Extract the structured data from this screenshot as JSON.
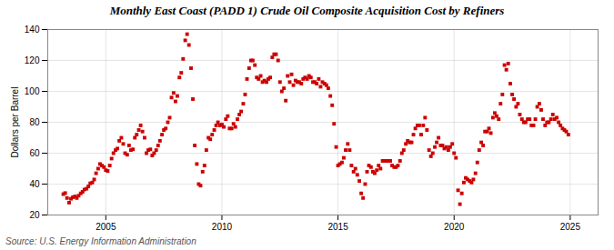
{
  "chart_data": {
    "type": "scatter",
    "title": "Monthly East Coast (PADD 1) Crude Oil Composite Acquisition Cost by Refiners",
    "ylabel": "Dollars per Barrel",
    "caption": "Source: U.S. Energy Information Administration",
    "color": "#cc0000",
    "marker": "square",
    "grid": true,
    "xlim": [
      2002.5,
      2026.2
    ],
    "xticks": [
      2005,
      2010,
      2015,
      2020,
      2025
    ],
    "ylim": [
      20,
      140
    ],
    "yticks": [
      20,
      40,
      60,
      80,
      100,
      120,
      140
    ],
    "x": [
      2003.17,
      2003.25,
      2003.33,
      2003.42,
      2003.5,
      2003.58,
      2003.67,
      2003.75,
      2003.83,
      2003.92,
      2004.0,
      2004.08,
      2004.17,
      2004.25,
      2004.33,
      2004.42,
      2004.5,
      2004.58,
      2004.67,
      2004.75,
      2004.83,
      2004.92,
      2005.0,
      2005.08,
      2005.17,
      2005.25,
      2005.33,
      2005.42,
      2005.5,
      2005.58,
      2005.67,
      2005.75,
      2005.83,
      2005.92,
      2006.0,
      2006.08,
      2006.17,
      2006.25,
      2006.33,
      2006.42,
      2006.5,
      2006.58,
      2006.67,
      2006.75,
      2006.83,
      2006.92,
      2007.0,
      2007.08,
      2007.17,
      2007.25,
      2007.33,
      2007.42,
      2007.5,
      2007.58,
      2007.67,
      2007.75,
      2007.83,
      2007.92,
      2008.0,
      2008.08,
      2008.17,
      2008.25,
      2008.33,
      2008.42,
      2008.5,
      2008.58,
      2008.67,
      2008.75,
      2008.83,
      2008.92,
      2009.0,
      2009.08,
      2009.17,
      2009.25,
      2009.33,
      2009.42,
      2009.5,
      2009.58,
      2009.67,
      2009.75,
      2009.83,
      2009.92,
      2010.0,
      2010.08,
      2010.17,
      2010.25,
      2010.33,
      2010.42,
      2010.5,
      2010.58,
      2010.67,
      2010.75,
      2010.83,
      2010.92,
      2011.0,
      2011.08,
      2011.17,
      2011.25,
      2011.33,
      2011.42,
      2011.5,
      2011.58,
      2011.67,
      2011.75,
      2011.83,
      2011.92,
      2012.0,
      2012.08,
      2012.17,
      2012.25,
      2012.33,
      2012.42,
      2012.5,
      2012.58,
      2012.67,
      2012.75,
      2012.83,
      2012.92,
      2013.0,
      2013.08,
      2013.17,
      2013.25,
      2013.33,
      2013.42,
      2013.5,
      2013.58,
      2013.67,
      2013.75,
      2013.83,
      2013.92,
      2014.0,
      2014.08,
      2014.17,
      2014.25,
      2014.33,
      2014.42,
      2014.5,
      2014.58,
      2014.67,
      2014.75,
      2014.83,
      2014.92,
      2015.0,
      2015.08,
      2015.17,
      2015.25,
      2015.33,
      2015.42,
      2015.5,
      2015.58,
      2015.67,
      2015.75,
      2015.83,
      2015.92,
      2016.0,
      2016.08,
      2016.17,
      2016.25,
      2016.33,
      2016.42,
      2016.5,
      2016.58,
      2016.67,
      2016.75,
      2016.83,
      2016.92,
      2017.0,
      2017.08,
      2017.17,
      2017.25,
      2017.33,
      2017.42,
      2017.5,
      2017.58,
      2017.67,
      2017.75,
      2017.83,
      2017.92,
      2018.0,
      2018.08,
      2018.17,
      2018.25,
      2018.33,
      2018.42,
      2018.5,
      2018.58,
      2018.67,
      2018.75,
      2018.83,
      2018.92,
      2019.0,
      2019.08,
      2019.17,
      2019.25,
      2019.33,
      2019.42,
      2019.5,
      2019.58,
      2019.67,
      2019.75,
      2019.83,
      2019.92,
      2020.0,
      2020.08,
      2020.17,
      2020.25,
      2020.33,
      2020.42,
      2020.5,
      2020.58,
      2020.67,
      2020.75,
      2020.83,
      2020.92,
      2021.0,
      2021.08,
      2021.17,
      2021.25,
      2021.33,
      2021.42,
      2021.5,
      2021.58,
      2021.67,
      2021.75,
      2021.83,
      2021.92,
      2022.0,
      2022.08,
      2022.17,
      2022.25,
      2022.33,
      2022.42,
      2022.5,
      2022.58,
      2022.67,
      2022.75,
      2022.83,
      2022.92,
      2023.0,
      2023.08,
      2023.17,
      2023.25,
      2023.33,
      2023.42,
      2023.5,
      2023.58,
      2023.67,
      2023.75,
      2023.83,
      2023.92,
      2024.0,
      2024.08,
      2024.17,
      2024.25,
      2024.33,
      2024.42,
      2024.5,
      2024.58,
      2024.67,
      2024.75,
      2024.83,
      2024.92
    ],
    "values": [
      33.5,
      34.2,
      31.0,
      28.0,
      30.5,
      31.5,
      32.0,
      31.0,
      32.5,
      34.0,
      35.0,
      36.5,
      37.0,
      38.5,
      40.5,
      41.0,
      43.0,
      47.0,
      50.0,
      53.0,
      52.0,
      51.0,
      49.0,
      48.5,
      52.0,
      56.5,
      60.0,
      62.0,
      63.0,
      68.0,
      70.0,
      66.0,
      60.0,
      59.0,
      65.0,
      62.0,
      62.5,
      70.0,
      72.0,
      75.0,
      78.0,
      74.0,
      70.0,
      60.0,
      62.0,
      62.5,
      58.5,
      60.0,
      62.0,
      65.0,
      68.0,
      72.0,
      75.0,
      76.0,
      80.0,
      83.0,
      96.0,
      99.0,
      93.5,
      97.0,
      109.0,
      112.0,
      121.0,
      133.0,
      137.0,
      130.0,
      115.0,
      95.0,
      65.0,
      53.0,
      40.0,
      39.0,
      48.0,
      52.0,
      62.0,
      70.0,
      69.0,
      72.0,
      75.0,
      78.0,
      80.0,
      78.0,
      78.5,
      77.0,
      82.0,
      84.0,
      76.0,
      76.0,
      79.0,
      77.0,
      82.0,
      85.0,
      87.0,
      92.0,
      98.0,
      108.0,
      115.0,
      120.0,
      120.0,
      117.0,
      109.0,
      108.0,
      110.0,
      106.0,
      107.0,
      106.0,
      108.0,
      109.0,
      122.0,
      124.0,
      124.0,
      120.0,
      106.0,
      100.0,
      102.0,
      94.0,
      110.0,
      106.0,
      111.0,
      104.0,
      107.0,
      106.0,
      106.0,
      105.0,
      108.0,
      109.0,
      108.0,
      110.0,
      109.0,
      106.0,
      106.0,
      105.0,
      108.0,
      103.0,
      106.0,
      105.0,
      104.0,
      102.0,
      97.0,
      91.0,
      79.0,
      64.0,
      52.0,
      53.0,
      54.0,
      57.0,
      62.0,
      66.0,
      62.0,
      52.0,
      48.0,
      50.0,
      46.0,
      42.0,
      34.0,
      31.0,
      40.0,
      48.0,
      52.0,
      51.0,
      48.0,
      47.0,
      49.0,
      52.0,
      50.0,
      55.0,
      55.0,
      55.0,
      55.0,
      55.0,
      52.0,
      51.0,
      51.0,
      52.0,
      55.0,
      60.0,
      62.0,
      66.0,
      68.0,
      67.0,
      67.0,
      72.0,
      76.0,
      78.0,
      78.0,
      72.0,
      78.0,
      83.0,
      75.0,
      62.0,
      58.0,
      60.0,
      64.0,
      67.0,
      70.0,
      65.0,
      65.0,
      63.0,
      64.0,
      62.0,
      64.0,
      66.0,
      60.0,
      57.0,
      36.0,
      27.0,
      34.0,
      41.0,
      44.0,
      43.0,
      42.0,
      41.0,
      43.0,
      47.0,
      54.0,
      62.0,
      67.0,
      65.0,
      74.0,
      74.0,
      76.0,
      73.0,
      83.0,
      86.0,
      84.0,
      82.0,
      92.0,
      98.0,
      117.0,
      114.0,
      118.0,
      105.0,
      98.0,
      95.0,
      90.0,
      92.0,
      85.0,
      82.0,
      80.0,
      80.0,
      82.0,
      82.0,
      78.0,
      78.0,
      82.0,
      90.0,
      92.0,
      88.0,
      82.0,
      78.0,
      80.0,
      80.0,
      82.0,
      85.0,
      82.0,
      83.0,
      80.0,
      78.0,
      76.0,
      75.0,
      74.0,
      72.0
    ]
  }
}
